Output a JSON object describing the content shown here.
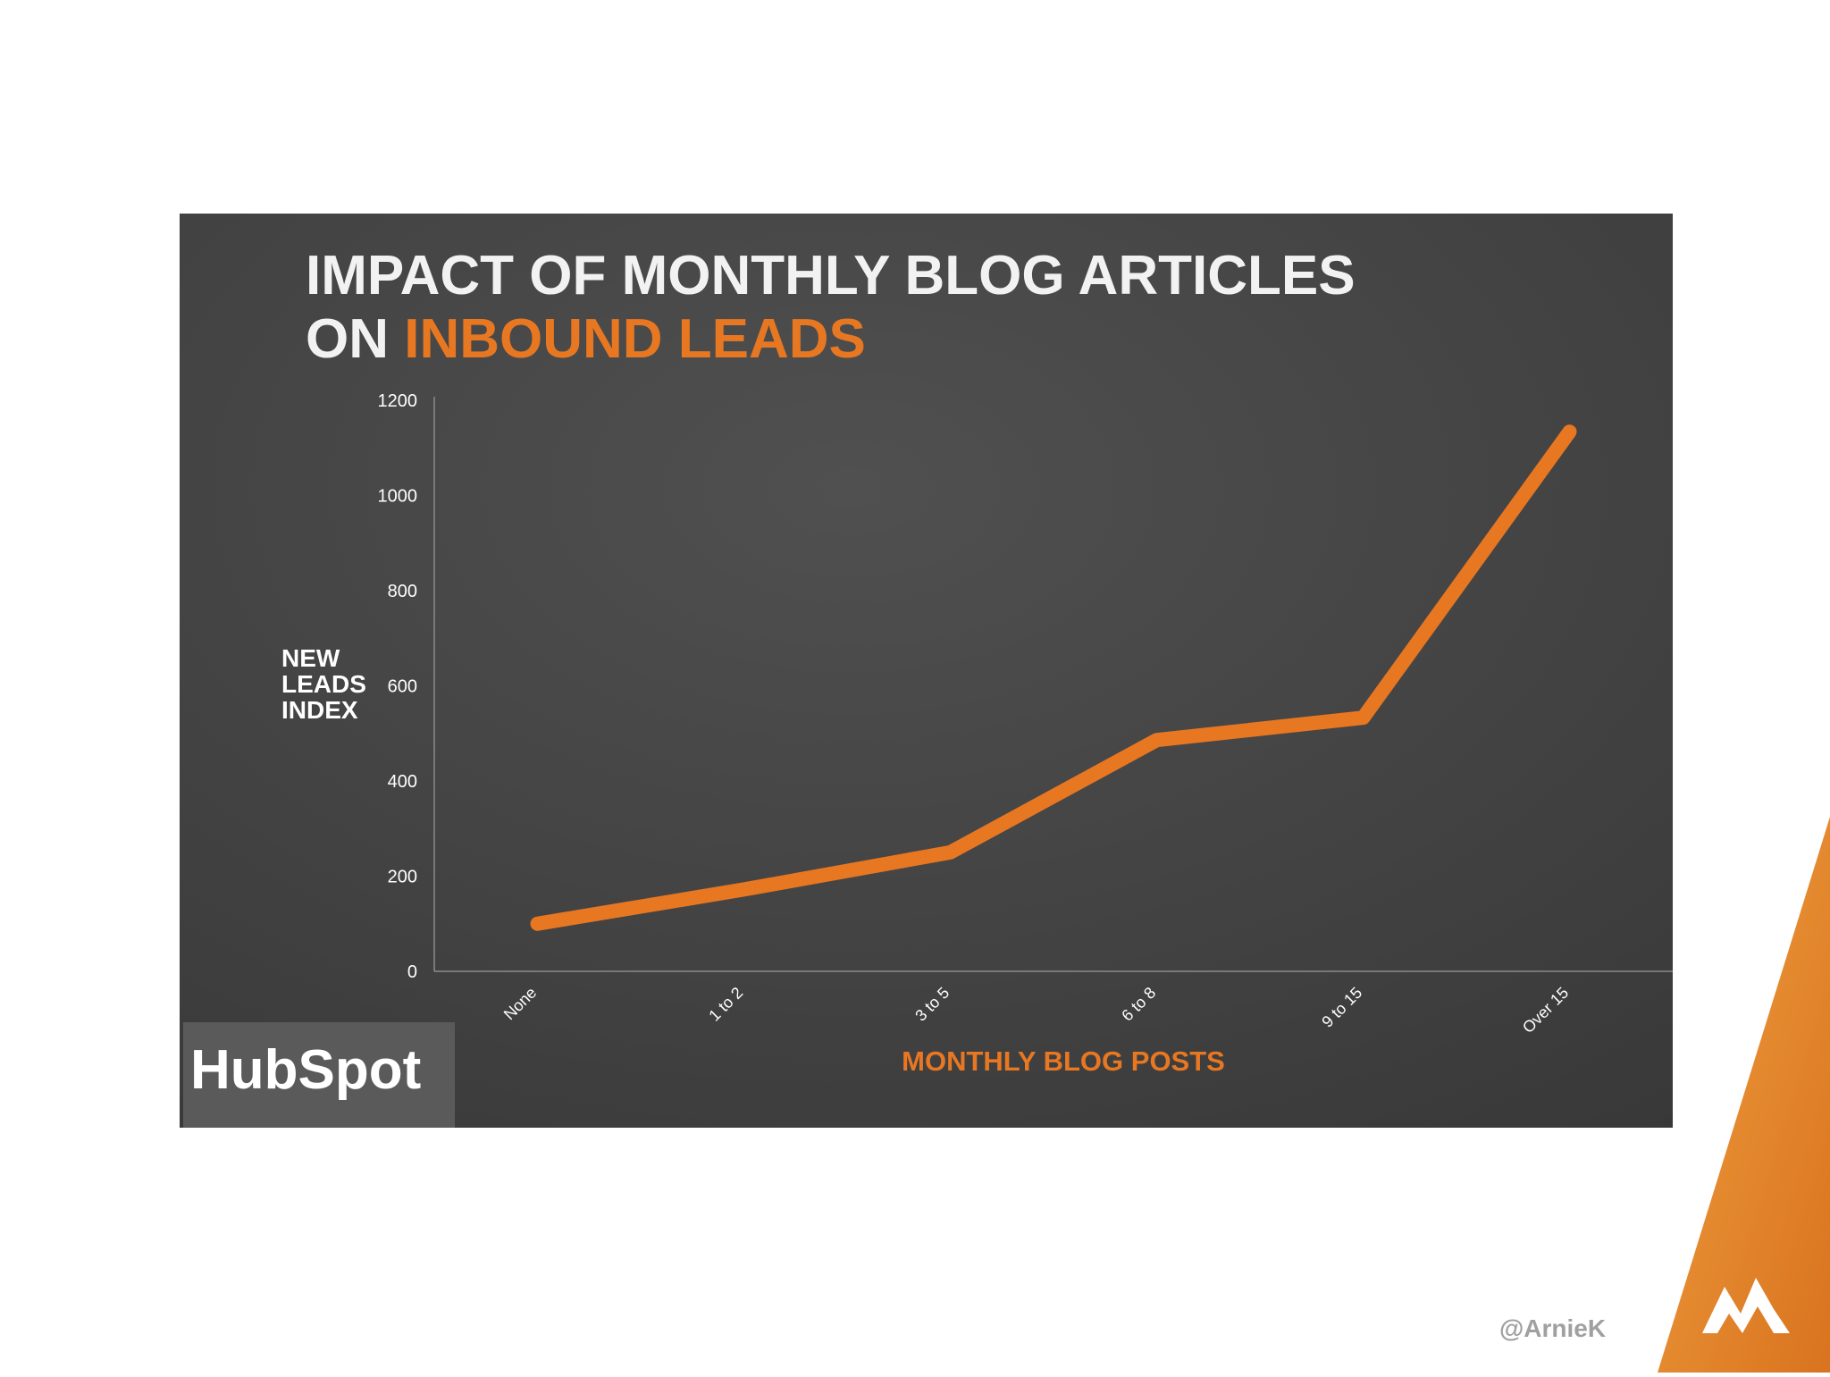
{
  "chart_data": {
    "type": "line",
    "title_line1": "IMPACT OF MONTHLY BLOG ARTICLES",
    "title_line2_prefix": "ON",
    "title_line2_highlight": "INBOUND LEADS",
    "ylabel": [
      "NEW",
      "LEADS",
      "INDEX"
    ],
    "xlabel": "MONTHLY BLOG POSTS",
    "categories": [
      "None",
      "1 to 2",
      "3 to 5",
      "6 to 8",
      "9 to 15",
      "Over 15"
    ],
    "values": [
      100,
      172,
      250,
      486,
      533,
      1134
    ],
    "color": "#e87722",
    "ylim": [
      0,
      1200
    ],
    "yticks": [
      0,
      200,
      400,
      600,
      800,
      1000,
      1200
    ],
    "grid": false
  },
  "logo": "HubSpot",
  "handle": "@ArnieK"
}
